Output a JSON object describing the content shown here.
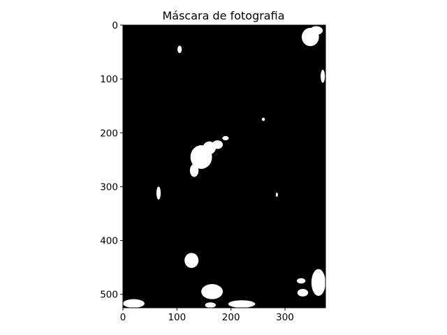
{
  "chart_data": {
    "type": "heatmap",
    "title": "Máscara de fotografia",
    "xlabel": "",
    "ylabel": "",
    "xlim": [
      0,
      375
    ],
    "ylim": [
      525,
      0
    ],
    "x_ticks": [
      0,
      100,
      200,
      300
    ],
    "y_ticks": [
      0,
      100,
      200,
      300,
      400,
      500
    ],
    "x_tick_labels": [
      "0",
      "100",
      "200",
      "300"
    ],
    "y_tick_labels": [
      "0",
      "100",
      "200",
      "300",
      "400",
      "500"
    ],
    "background_color": "#000000",
    "mask_color": "#ffffff",
    "blobs": [
      {
        "cx": 347,
        "cy": 22,
        "rx": 16,
        "ry": 17
      },
      {
        "cx": 358,
        "cy": 10,
        "rx": 12,
        "ry": 8
      },
      {
        "cx": 370,
        "cy": 95,
        "rx": 4,
        "ry": 12
      },
      {
        "cx": 145,
        "cy": 245,
        "rx": 20,
        "ry": 22
      },
      {
        "cx": 160,
        "cy": 228,
        "rx": 12,
        "ry": 12
      },
      {
        "cx": 175,
        "cy": 222,
        "rx": 10,
        "ry": 8
      },
      {
        "cx": 132,
        "cy": 270,
        "rx": 8,
        "ry": 12
      },
      {
        "cx": 190,
        "cy": 210,
        "rx": 6,
        "ry": 4
      },
      {
        "cx": 66,
        "cy": 312,
        "rx": 4,
        "ry": 12
      },
      {
        "cx": 127,
        "cy": 437,
        "rx": 13,
        "ry": 14
      },
      {
        "cx": 20,
        "cy": 517,
        "rx": 20,
        "ry": 8
      },
      {
        "cx": 220,
        "cy": 518,
        "rx": 25,
        "ry": 7
      },
      {
        "cx": 362,
        "cy": 478,
        "rx": 13,
        "ry": 25
      },
      {
        "cx": 330,
        "cy": 475,
        "rx": 8,
        "ry": 5
      },
      {
        "cx": 333,
        "cy": 497,
        "rx": 10,
        "ry": 7
      },
      {
        "cx": 165,
        "cy": 495,
        "rx": 20,
        "ry": 14
      },
      {
        "cx": 162,
        "cy": 520,
        "rx": 10,
        "ry": 5
      },
      {
        "cx": 105,
        "cy": 45,
        "rx": 4,
        "ry": 7
      },
      {
        "cx": 260,
        "cy": 175,
        "rx": 3,
        "ry": 3
      },
      {
        "cx": 285,
        "cy": 315,
        "rx": 2,
        "ry": 4
      }
    ]
  }
}
